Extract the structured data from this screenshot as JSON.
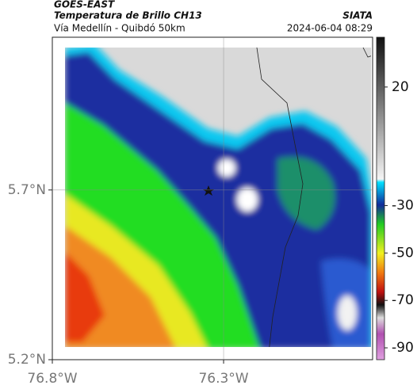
{
  "header": {
    "source": "GOES-EAST",
    "product": "Temperatura de Brillo CH13",
    "agency": "SIATA",
    "route": "Vía Medellín - Quibdó 50km",
    "timestamp": "2024-06-04 08:29"
  },
  "map": {
    "xlim": [
      -76.8,
      -75.865
    ],
    "ylim": [
      5.2,
      6.15
    ],
    "xticks": [
      {
        "value": -76.8,
        "label": "76.8°W"
      },
      {
        "value": -76.3,
        "label": "76.3°W"
      }
    ],
    "yticks": [
      {
        "value": 5.7,
        "label": "5.7°N"
      },
      {
        "value": 5.2,
        "label": "5.2°N"
      }
    ]
  },
  "colorbar": {
    "clim": [
      -95,
      41
    ],
    "ticks": [
      20,
      -30,
      -50,
      -70,
      -90
    ]
  }
}
